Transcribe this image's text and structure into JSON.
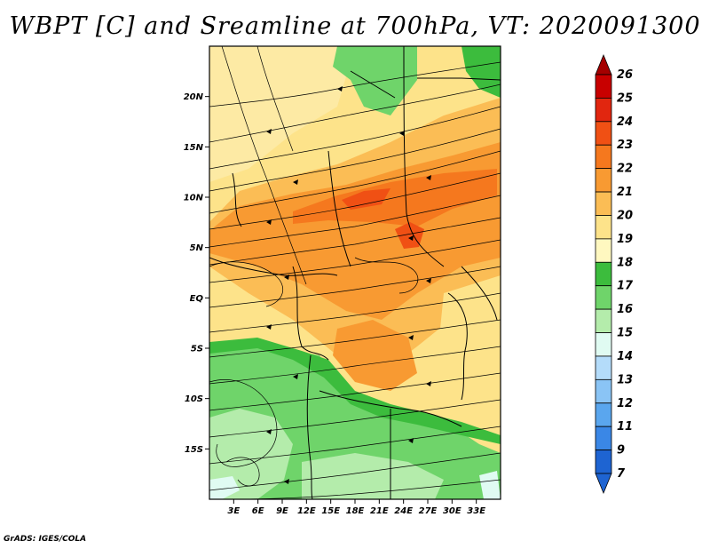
{
  "title": "WBPT [C] and Sreamline at 700hPa, VT: 2020091300",
  "footer": "GrADS: IGES/COLA",
  "map": {
    "lon_range": [
      0,
      36
    ],
    "lat_range": [
      -20,
      25
    ],
    "lat_ticks": [
      {
        "lat": 20,
        "label": "20N"
      },
      {
        "lat": 15,
        "label": "15N"
      },
      {
        "lat": 10,
        "label": "10N"
      },
      {
        "lat": 5,
        "label": "5N"
      },
      {
        "lat": 0,
        "label": "EQ"
      },
      {
        "lat": -5,
        "label": "5S"
      },
      {
        "lat": -10,
        "label": "10S"
      },
      {
        "lat": -15,
        "label": "15S"
      }
    ],
    "lon_ticks": [
      {
        "lon": 3,
        "label": "3E"
      },
      {
        "lon": 6,
        "label": "6E"
      },
      {
        "lon": 9,
        "label": "9E"
      },
      {
        "lon": 12,
        "label": "12E"
      },
      {
        "lon": 15,
        "label": "15E"
      },
      {
        "lon": 18,
        "label": "18E"
      },
      {
        "lon": 21,
        "label": "21E"
      },
      {
        "lon": 24,
        "label": "24E"
      },
      {
        "lon": 27,
        "label": "27E"
      },
      {
        "lon": 30,
        "label": "30E"
      },
      {
        "lon": 33,
        "label": "33E"
      }
    ]
  },
  "colorbar": {
    "levels": [
      {
        "label": "26",
        "color": "#a50000"
      },
      {
        "label": "25",
        "color": "#c80000"
      },
      {
        "label": "24",
        "color": "#e1260f"
      },
      {
        "label": "23",
        "color": "#f05014"
      },
      {
        "label": "22",
        "color": "#f5781e"
      },
      {
        "label": "21",
        "color": "#f89a32"
      },
      {
        "label": "20",
        "color": "#fbbd55"
      },
      {
        "label": "19",
        "color": "#fde38a"
      },
      {
        "label": "18",
        "color": "#fff8c0"
      },
      {
        "label": "17",
        "color": "#3cbc3d"
      },
      {
        "label": "16",
        "color": "#6fd46a"
      },
      {
        "label": "15",
        "color": "#b4ecab"
      },
      {
        "label": "14",
        "color": "#e0fbf2"
      },
      {
        "label": "13",
        "color": "#b4dcfa"
      },
      {
        "label": "12",
        "color": "#8ac4f5"
      },
      {
        "label": "11",
        "color": "#5aa6ee"
      },
      {
        "label": "9",
        "color": "#3a87e6"
      },
      {
        "label": "7",
        "color": "#1e64d2"
      }
    ],
    "bottom_color": "#1e64d2"
  },
  "field_colors": {
    "c16": "#b4ecab",
    "c17": "#6fd46a",
    "c18": "#3cbc3d",
    "c19": "#fde38a",
    "c20": "#fbbd55",
    "c21": "#f89a32",
    "c22": "#f5781e",
    "c23": "#f05014",
    "c14": "#e0fbf2"
  }
}
